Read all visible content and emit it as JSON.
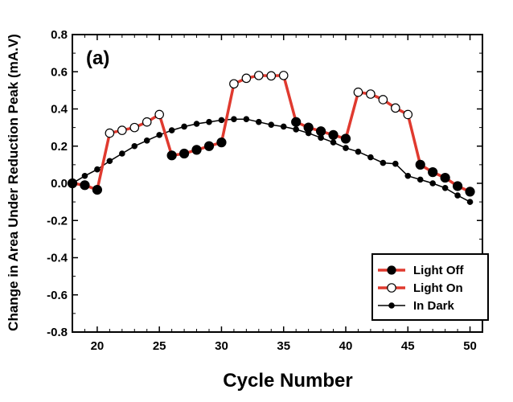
{
  "chart_data": {
    "type": "line",
    "panel_label": "(a)",
    "xlabel": "Cycle Number",
    "ylabel": "Change in Area Under Reduction Peak (mA.V)",
    "xlim": [
      18,
      51
    ],
    "ylim": [
      -0.8,
      0.8
    ],
    "x_ticks": [
      20,
      25,
      30,
      35,
      40,
      45,
      50
    ],
    "y_ticks": [
      -0.8,
      -0.6,
      -0.4,
      -0.2,
      0.0,
      0.2,
      0.4,
      0.6,
      0.8
    ],
    "y_tick_labels": [
      "-0.8",
      "-0.6",
      "-0.4",
      "-0.2",
      "0.0",
      "0.2",
      "0.4",
      "0.6",
      "0.8"
    ],
    "legend_position": "bottom-right",
    "colors": {
      "light_series_line": "#e03a2f",
      "dark_series_line": "#000000",
      "axis": "#000000"
    },
    "series": [
      {
        "name": "Light Off",
        "marker": "filled-circle-large",
        "line_color": "#e03a2f",
        "points": [
          [
            18,
            0.0
          ],
          [
            19,
            -0.01
          ],
          [
            20,
            -0.035
          ],
          [
            26,
            0.15
          ],
          [
            27,
            0.16
          ],
          [
            28,
            0.18
          ],
          [
            29,
            0.2
          ],
          [
            30,
            0.22
          ],
          [
            36,
            0.33
          ],
          [
            37,
            0.3
          ],
          [
            38,
            0.28
          ],
          [
            39,
            0.26
          ],
          [
            40,
            0.24
          ],
          [
            46,
            0.1
          ],
          [
            47,
            0.06
          ],
          [
            48,
            0.03
          ],
          [
            49,
            -0.015
          ],
          [
            50,
            -0.045
          ]
        ]
      },
      {
        "name": "Light On",
        "marker": "open-circle-large",
        "line_color": "#e03a2f",
        "points": [
          [
            21,
            0.27
          ],
          [
            22,
            0.285
          ],
          [
            23,
            0.3
          ],
          [
            24,
            0.33
          ],
          [
            25,
            0.37
          ],
          [
            31,
            0.535
          ],
          [
            32,
            0.565
          ],
          [
            33,
            0.58
          ],
          [
            34,
            0.578
          ],
          [
            35,
            0.58
          ],
          [
            41,
            0.49
          ],
          [
            42,
            0.48
          ],
          [
            43,
            0.45
          ],
          [
            44,
            0.405
          ],
          [
            45,
            0.37
          ]
        ]
      },
      {
        "name": "In Dark",
        "marker": "filled-circle-small",
        "line_color": "#000000",
        "points": [
          [
            18,
            0.0
          ],
          [
            19,
            0.04
          ],
          [
            20,
            0.075
          ],
          [
            21,
            0.12
          ],
          [
            22,
            0.16
          ],
          [
            23,
            0.2
          ],
          [
            24,
            0.23
          ],
          [
            25,
            0.26
          ],
          [
            26,
            0.285
          ],
          [
            27,
            0.305
          ],
          [
            28,
            0.32
          ],
          [
            29,
            0.33
          ],
          [
            30,
            0.34
          ],
          [
            31,
            0.345
          ],
          [
            32,
            0.345
          ],
          [
            33,
            0.33
          ],
          [
            34,
            0.315
          ],
          [
            35,
            0.305
          ],
          [
            36,
            0.29
          ],
          [
            37,
            0.27
          ],
          [
            38,
            0.245
          ],
          [
            39,
            0.22
          ],
          [
            40,
            0.19
          ],
          [
            41,
            0.17
          ],
          [
            42,
            0.14
          ],
          [
            43,
            0.11
          ],
          [
            44,
            0.105
          ],
          [
            45,
            0.04
          ],
          [
            46,
            0.02
          ],
          [
            47,
            0.0
          ],
          [
            48,
            -0.025
          ],
          [
            49,
            -0.065
          ],
          [
            50,
            -0.1
          ]
        ]
      }
    ]
  }
}
